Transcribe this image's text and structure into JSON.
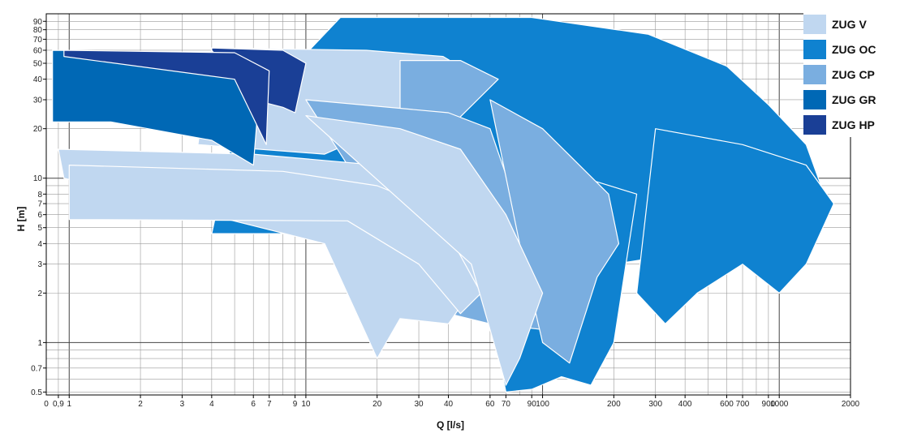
{
  "chart_data": {
    "type": "area",
    "title": "",
    "xlabel": "Q [l/s]",
    "ylabel": "H [m]",
    "x_scale": "log",
    "y_scale": "log",
    "xlim": [
      0.8,
      2000
    ],
    "ylim": [
      0.48,
      100
    ],
    "x_ticks": [
      {
        "value": 0.9,
        "label": "0,9"
      },
      {
        "value": 1,
        "label": "1"
      },
      {
        "value": 2,
        "label": "2"
      },
      {
        "value": 3,
        "label": "3"
      },
      {
        "value": 4,
        "label": "4"
      },
      {
        "value": 6,
        "label": "6"
      },
      {
        "value": 7,
        "label": "7"
      },
      {
        "value": 9,
        "label": "9"
      },
      {
        "value": 10,
        "label": "10"
      },
      {
        "value": 20,
        "label": "20"
      },
      {
        "value": 30,
        "label": "30"
      },
      {
        "value": 40,
        "label": "40"
      },
      {
        "value": 60,
        "label": "60"
      },
      {
        "value": 70,
        "label": "70"
      },
      {
        "value": 90,
        "label": "90"
      },
      {
        "value": 100,
        "label": "100"
      },
      {
        "value": 200,
        "label": "200"
      },
      {
        "value": 300,
        "label": "300"
      },
      {
        "value": 400,
        "label": "400"
      },
      {
        "value": 600,
        "label": "600"
      },
      {
        "value": 700,
        "label": "700"
      },
      {
        "value": 900,
        "label": "900"
      },
      {
        "value": 1000,
        "label": "1000"
      },
      {
        "value": 2000,
        "label": "2000"
      }
    ],
    "x_zero_label": "0",
    "y_ticks": [
      {
        "value": 0.5,
        "label": "0.5"
      },
      {
        "value": 0.7,
        "label": "0.7"
      },
      {
        "value": 1,
        "label": "1"
      },
      {
        "value": 2,
        "label": "2"
      },
      {
        "value": 3,
        "label": "3"
      },
      {
        "value": 4,
        "label": "4"
      },
      {
        "value": 5,
        "label": "5"
      },
      {
        "value": 6,
        "label": "6"
      },
      {
        "value": 7,
        "label": "7"
      },
      {
        "value": 8,
        "label": "8"
      },
      {
        "value": 10,
        "label": "10"
      },
      {
        "value": 20,
        "label": "20"
      },
      {
        "value": 30,
        "label": "30"
      },
      {
        "value": 40,
        "label": "40"
      },
      {
        "value": 50,
        "label": "50"
      },
      {
        "value": 60,
        "label": "60"
      },
      {
        "value": 70,
        "label": "70"
      },
      {
        "value": 80,
        "label": "80"
      },
      {
        "value": 90,
        "label": "90"
      }
    ],
    "grid": true,
    "legend_position": "top-right",
    "series": [
      {
        "name": "ZUG V",
        "color": "#c0d7f0"
      },
      {
        "name": "ZUG OC",
        "color": "#0f82d0"
      },
      {
        "name": "ZUG CP",
        "color": "#7aaee0"
      },
      {
        "name": "ZUG GR",
        "color": "#0068b5"
      },
      {
        "name": "ZUG HP",
        "color": "#1a3f96"
      }
    ],
    "regions": [
      {
        "series": "ZUG OC",
        "points": [
          [
            14,
            95
          ],
          [
            90,
            95
          ],
          [
            280,
            75
          ],
          [
            600,
            48
          ],
          [
            900,
            28
          ],
          [
            1300,
            16
          ],
          [
            1600,
            7
          ],
          [
            1100,
            5
          ],
          [
            700,
            4
          ],
          [
            400,
            3.5
          ],
          [
            200,
            3
          ],
          [
            100,
            3.2
          ],
          [
            60,
            4
          ],
          [
            30,
            4.6
          ],
          [
            4,
            4.6
          ],
          [
            5,
            20
          ],
          [
            14,
            95
          ]
        ]
      },
      {
        "series": "ZUG OC",
        "points": [
          [
            300,
            20
          ],
          [
            700,
            16
          ],
          [
            1300,
            12
          ],
          [
            1700,
            7
          ],
          [
            1300,
            3
          ],
          [
            1000,
            2
          ],
          [
            700,
            3
          ],
          [
            450,
            2
          ],
          [
            330,
            1.3
          ],
          [
            250,
            2
          ],
          [
            300,
            20
          ]
        ]
      },
      {
        "series": "ZUG OC",
        "points": [
          [
            100,
            12
          ],
          [
            250,
            8
          ],
          [
            200,
            1
          ],
          [
            160,
            0.55
          ],
          [
            120,
            0.62
          ],
          [
            90,
            0.52
          ],
          [
            70,
            0.5
          ],
          [
            60,
            1.5
          ],
          [
            100,
            12
          ]
        ]
      },
      {
        "series": "ZUG V",
        "points": [
          [
            4,
            62
          ],
          [
            18,
            60
          ],
          [
            38,
            55
          ],
          [
            55,
            40
          ],
          [
            30,
            25
          ],
          [
            12,
            14
          ],
          [
            3.5,
            16
          ],
          [
            4,
            62
          ]
        ]
      },
      {
        "series": "ZUG CP",
        "points": [
          [
            25,
            52
          ],
          [
            45,
            52
          ],
          [
            65,
            40
          ],
          [
            40,
            20
          ],
          [
            25,
            25
          ],
          [
            25,
            52
          ]
        ]
      },
      {
        "series": "ZUG CP",
        "points": [
          [
            10,
            30
          ],
          [
            40,
            25
          ],
          [
            60,
            20
          ],
          [
            80,
            6
          ],
          [
            100,
            1.2
          ],
          [
            60,
            1.3
          ],
          [
            40,
            1.5
          ],
          [
            25,
            2.5
          ],
          [
            15,
            12
          ],
          [
            10,
            30
          ]
        ]
      },
      {
        "series": "ZUG CP",
        "points": [
          [
            60,
            30
          ],
          [
            100,
            20
          ],
          [
            190,
            8
          ],
          [
            210,
            4
          ],
          [
            170,
            2.5
          ],
          [
            130,
            0.75
          ],
          [
            100,
            1
          ],
          [
            80,
            4
          ],
          [
            60,
            30
          ]
        ]
      },
      {
        "series": "ZUG V",
        "points": [
          [
            0.9,
            15
          ],
          [
            6,
            14
          ],
          [
            20,
            12
          ],
          [
            35,
            8
          ],
          [
            60,
            3
          ],
          [
            40,
            1.3
          ],
          [
            25,
            1.4
          ],
          [
            20,
            0.8
          ],
          [
            12,
            4
          ],
          [
            0.95,
            10
          ],
          [
            0.9,
            15
          ]
        ]
      },
      {
        "series": "ZUG V",
        "points": [
          [
            1,
            12
          ],
          [
            8,
            11
          ],
          [
            20,
            9
          ],
          [
            35,
            6.5
          ],
          [
            55,
            2
          ],
          [
            45,
            1.5
          ],
          [
            30,
            3
          ],
          [
            15,
            5.5
          ],
          [
            1,
            5.6
          ],
          [
            1,
            12
          ]
        ]
      },
      {
        "series": "ZUG V",
        "points": [
          [
            10,
            24
          ],
          [
            25,
            20
          ],
          [
            45,
            15
          ],
          [
            70,
            6
          ],
          [
            100,
            2
          ],
          [
            80,
            0.8
          ],
          [
            70,
            0.55
          ],
          [
            50,
            3
          ],
          [
            10,
            24
          ]
        ]
      },
      {
        "series": "ZUG GR",
        "points": [
          [
            0.85,
            60
          ],
          [
            5,
            58
          ],
          [
            6.5,
            50
          ],
          [
            6,
            12
          ],
          [
            4,
            17
          ],
          [
            1.5,
            22
          ],
          [
            0.85,
            22
          ],
          [
            0.85,
            60
          ]
        ]
      },
      {
        "series": "ZUG HP",
        "points": [
          [
            4,
            62
          ],
          [
            8,
            60
          ],
          [
            10,
            50
          ],
          [
            9,
            25
          ],
          [
            8,
            27
          ],
          [
            6,
            30
          ],
          [
            4,
            60
          ],
          [
            4,
            62
          ]
        ]
      },
      {
        "series": "ZUG HP",
        "points": [
          [
            0.95,
            60
          ],
          [
            5,
            58
          ],
          [
            7,
            45
          ],
          [
            6.8,
            16
          ],
          [
            5,
            40
          ],
          [
            0.95,
            55
          ],
          [
            0.95,
            60
          ]
        ]
      }
    ]
  },
  "legend": {
    "items": [
      {
        "label": "ZUG V",
        "color": "#c0d7f0"
      },
      {
        "label": "ZUG OC",
        "color": "#0f82d0"
      },
      {
        "label": "ZUG CP",
        "color": "#7aaee0"
      },
      {
        "label": "ZUG GR",
        "color": "#0068b5"
      },
      {
        "label": "ZUG HP",
        "color": "#1a3f96"
      }
    ]
  }
}
